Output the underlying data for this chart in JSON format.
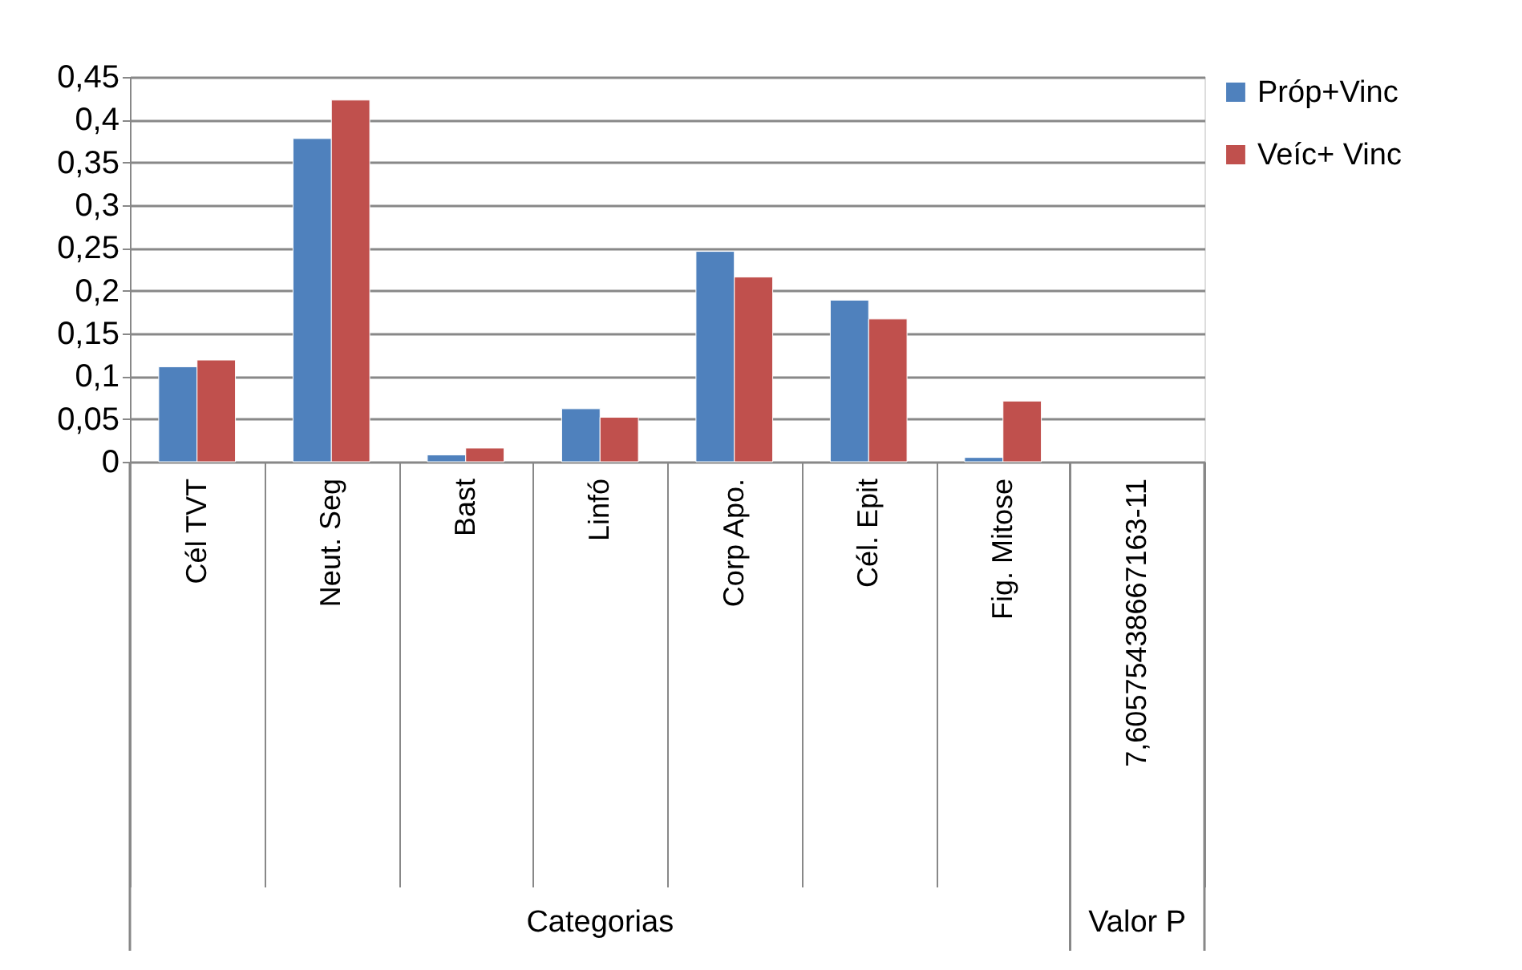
{
  "chart_data": {
    "type": "bar",
    "categories": [
      "Cél TVT",
      "Neut. Seg",
      "Bast",
      "Linfó",
      "Corp Apo.",
      "Cél. Epit",
      "Fig. Mitose",
      "7,60575438667163-11"
    ],
    "series": [
      {
        "name": "Próp+Vinc",
        "color": "#4f81bd",
        "values": [
          0.111,
          0.378,
          0.008,
          0.062,
          0.246,
          0.189,
          0.005,
          null
        ]
      },
      {
        "name": "Veíc+ Vinc",
        "color": "#c0504d",
        "values": [
          0.119,
          0.423,
          0.016,
          0.052,
          0.216,
          0.167,
          0.071,
          null
        ]
      }
    ],
    "ylim": [
      0,
      0.45
    ],
    "yticks": [
      0,
      {
        "value": 0.05,
        "label": "0,05"
      },
      {
        "value": 0.1,
        "label": "0,1"
      },
      {
        "value": 0.15,
        "label": "0,15"
      },
      {
        "value": 0.2,
        "label": "0,2"
      },
      {
        "value": 0.25,
        "label": "0,25"
      },
      {
        "value": 0.3,
        "label": "0,3"
      },
      {
        "value": 0.35,
        "label": "0,35"
      },
      {
        "value": 0.4,
        "label": "0,4"
      },
      {
        "value": 0.45,
        "label": "0,45"
      }
    ],
    "annotations": [
      "Categorias",
      "Valor P"
    ],
    "grid": "y",
    "legend": "right"
  }
}
